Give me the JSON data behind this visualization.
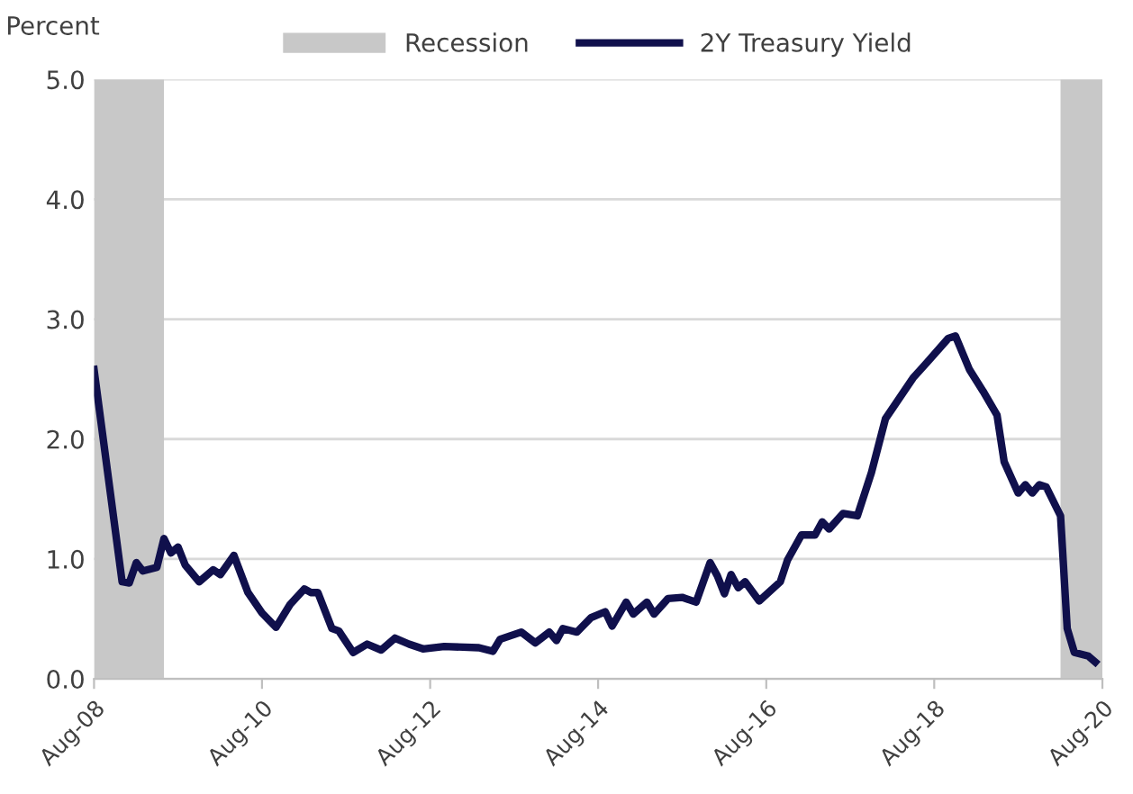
{
  "chart_data": {
    "type": "line",
    "ylabel": "Percent",
    "x": [
      "2008-08",
      "2008-12",
      "2009-01",
      "2009-02",
      "2009-03",
      "2009-05",
      "2009-06",
      "2009-07",
      "2009-08",
      "2009-09",
      "2009-11",
      "2010-01",
      "2010-02",
      "2010-04",
      "2010-06",
      "2010-08",
      "2010-10",
      "2010-12",
      "2011-02",
      "2011-03",
      "2011-04",
      "2011-06",
      "2011-07",
      "2011-09",
      "2011-11",
      "2012-01",
      "2012-03",
      "2012-05",
      "2012-07",
      "2012-10",
      "2013-03",
      "2013-05",
      "2013-06",
      "2013-09",
      "2013-11",
      "2014-01",
      "2014-02",
      "2014-03",
      "2014-05",
      "2014-07",
      "2014-09",
      "2014-10",
      "2014-12",
      "2015-01",
      "2015-03",
      "2015-04",
      "2015-06",
      "2015-08",
      "2015-10",
      "2015-12",
      "2016-01",
      "2016-02",
      "2016-03",
      "2016-04",
      "2016-05",
      "2016-07",
      "2016-10",
      "2016-11",
      "2017-01",
      "2017-03",
      "2017-04",
      "2017-05",
      "2017-07",
      "2017-09",
      "2017-11",
      "2018-01",
      "2018-05",
      "2018-07",
      "2018-10",
      "2018-11",
      "2019-01",
      "2019-03",
      "2019-05",
      "2019-06",
      "2019-08",
      "2019-09",
      "2019-10",
      "2019-11",
      "2019-12",
      "2020-02",
      "2020-03",
      "2020-04",
      "2020-06",
      "2020-07"
    ],
    "series": [
      {
        "name": "2Y Treasury Yield",
        "color": "#10104c",
        "values": [
          2.58,
          0.81,
          0.8,
          0.97,
          0.9,
          0.93,
          1.17,
          1.05,
          1.1,
          0.95,
          0.81,
          0.91,
          0.87,
          1.03,
          0.72,
          0.55,
          0.43,
          0.62,
          0.75,
          0.72,
          0.72,
          0.42,
          0.4,
          0.22,
          0.29,
          0.24,
          0.34,
          0.29,
          0.25,
          0.27,
          0.26,
          0.23,
          0.33,
          0.39,
          0.3,
          0.39,
          0.32,
          0.42,
          0.39,
          0.51,
          0.56,
          0.44,
          0.64,
          0.54,
          0.64,
          0.54,
          0.67,
          0.68,
          0.64,
          0.97,
          0.86,
          0.71,
          0.87,
          0.76,
          0.81,
          0.65,
          0.81,
          0.99,
          1.2,
          1.2,
          1.31,
          1.25,
          1.38,
          1.36,
          1.72,
          2.17,
          2.51,
          2.64,
          2.84,
          2.86,
          2.58,
          2.4,
          2.2,
          1.81,
          1.55,
          1.62,
          1.55,
          1.62,
          1.6,
          1.36,
          0.42,
          0.22,
          0.19,
          0.14
        ]
      }
    ],
    "bands": [
      {
        "axis": "x",
        "from": "2008-08",
        "to": "2009-06",
        "label": "Recession",
        "color": "#c8c8c8"
      },
      {
        "axis": "x",
        "from": "2020-02",
        "to": "2020-08",
        "color": "#c8c8c8"
      }
    ],
    "xlim": [
      "2008-08",
      "2020-08"
    ],
    "xticks": [
      {
        "value": "2008-08",
        "label": "Aug-08"
      },
      {
        "value": "2010-08",
        "label": "Aug-10"
      },
      {
        "value": "2012-08",
        "label": "Aug-12"
      },
      {
        "value": "2014-08",
        "label": "Aug-14"
      },
      {
        "value": "2016-08",
        "label": "Aug-16"
      },
      {
        "value": "2018-08",
        "label": "Aug-18"
      },
      {
        "value": "2020-08",
        "label": "Aug-20"
      }
    ],
    "ylim": [
      0,
      5
    ],
    "yticks": [
      {
        "value": 0,
        "label": "0.0"
      },
      {
        "value": 1,
        "label": "1.0"
      },
      {
        "value": 2,
        "label": "2.0"
      },
      {
        "value": 3,
        "label": "3.0"
      },
      {
        "value": 4,
        "label": "4.0"
      },
      {
        "value": 5,
        "label": "5.0"
      }
    ],
    "grid": "y",
    "legend": "top"
  }
}
